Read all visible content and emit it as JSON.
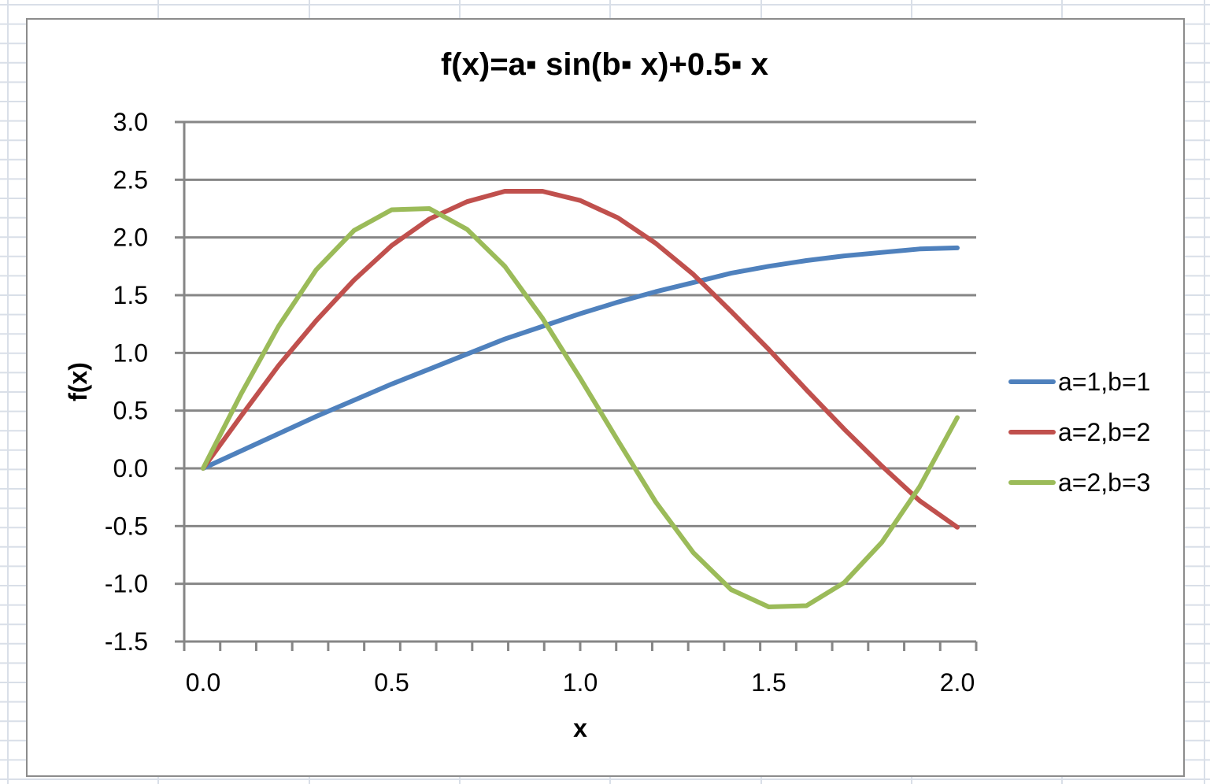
{
  "chart_data": {
    "type": "line",
    "title": "f(x)=a▪ sin(b▪ x)+0.5▪ x",
    "xlabel": "x",
    "ylabel": "f(x)",
    "xlim": [
      0,
      2.0
    ],
    "ylim": [
      -1.5,
      3.0
    ],
    "x_ticks": [
      "0.0",
      "0.5",
      "1.0",
      "1.5",
      "2.0"
    ],
    "y_ticks": [
      "3.0",
      "2.5",
      "2.0",
      "1.5",
      "1.0",
      "0.5",
      "0.0",
      "-0.5",
      "-1.0",
      "-1.5"
    ],
    "grid": true,
    "legend_position": "right",
    "x": [
      0.0,
      0.1,
      0.2,
      0.3,
      0.4,
      0.5,
      0.6,
      0.7,
      0.8,
      0.9,
      1.0,
      1.1,
      1.2,
      1.3,
      1.4,
      1.5,
      1.6,
      1.7,
      1.8,
      1.9,
      2.0
    ],
    "series": [
      {
        "name": "a=1,b=1",
        "color": "#4f81bd",
        "values": [
          0.0,
          0.15,
          0.3,
          0.45,
          0.59,
          0.73,
          0.86,
          0.99,
          1.12,
          1.23,
          1.34,
          1.44,
          1.53,
          1.61,
          1.69,
          1.75,
          1.8,
          1.84,
          1.87,
          1.9,
          1.91
        ]
      },
      {
        "name": "a=2,b=2",
        "color": "#c0504d",
        "values": [
          0.0,
          0.45,
          0.89,
          1.28,
          1.63,
          1.93,
          2.16,
          2.31,
          2.4,
          2.4,
          2.32,
          2.17,
          1.95,
          1.68,
          1.36,
          1.03,
          0.68,
          0.34,
          0.02,
          -0.28,
          -0.51
        ]
      },
      {
        "name": "a=2,b=3",
        "color": "#9bbb59",
        "values": [
          0.0,
          0.64,
          1.23,
          1.72,
          2.06,
          2.24,
          2.25,
          2.07,
          1.75,
          1.3,
          0.78,
          0.24,
          -0.29,
          -0.73,
          -1.05,
          -1.2,
          -1.19,
          -0.99,
          -0.64,
          -0.16,
          0.44
        ]
      }
    ]
  }
}
